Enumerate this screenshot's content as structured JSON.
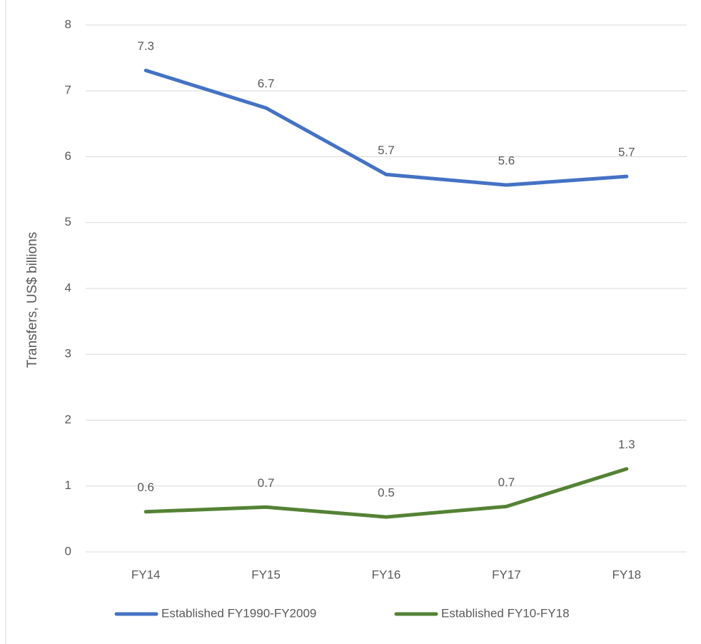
{
  "chart_data": {
    "type": "line",
    "y_label": "Transfers, US$ billions",
    "categories": [
      "FY14",
      "FY15",
      "FY16",
      "FY17",
      "FY18"
    ],
    "series": [
      {
        "name": "Established FY1990-FY2009",
        "color": "#4472c4",
        "values": [
          7.31,
          6.74,
          5.73,
          5.57,
          5.7
        ],
        "value_labels": [
          "7.3",
          "6.7",
          "5.7",
          "5.6",
          "5.7"
        ]
      },
      {
        "name": "Established FY10-FY18",
        "color": "#548235",
        "values": [
          0.61,
          0.68,
          0.53,
          0.69,
          1.26
        ],
        "value_labels": [
          "0.6",
          "0.7",
          "0.5",
          "0.7",
          "1.3"
        ]
      }
    ],
    "ylim": [
      0,
      8
    ],
    "yticks": [
      0,
      1,
      2,
      3,
      4,
      5,
      6,
      7,
      8
    ],
    "grid": true
  }
}
